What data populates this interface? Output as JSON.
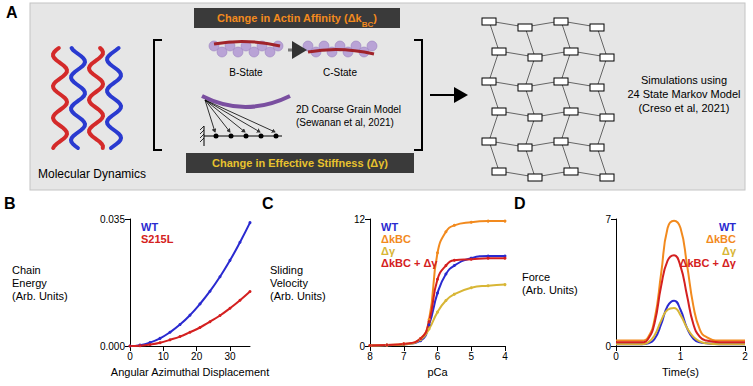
{
  "panel_a": {
    "letter": "A",
    "left_label": "Molecular Dynamics",
    "affinity_box": {
      "text": "Change in Actin Affinity (Δk",
      "sub": "BC",
      "tail": ")"
    },
    "b_state": "B-State",
    "c_state": "C-State",
    "coarse_grain": [
      "2D Coarse Grain Model",
      "(Sewanan et al, 2021)"
    ],
    "stiffness_box": "Change in Effective Stiffness (Δγ)",
    "simulation": [
      "Simulations using",
      "24 State Markov Model",
      "(Creso et al, 2021)"
    ]
  },
  "chart_data": [
    {
      "panel": "B",
      "type": "line",
      "marker": "circle",
      "grid": false,
      "legend": "top-left",
      "x_label": "Angular Azimuthal Displacement",
      "y_label": "Chain Energy (Arb. Units)",
      "x": [
        0,
        3,
        6,
        9,
        12,
        15,
        18,
        21,
        24,
        27,
        30,
        33,
        36
      ],
      "xlim": [
        0,
        36
      ],
      "xticks": [
        0,
        10,
        20,
        30
      ],
      "ylim": [
        0,
        0.035
      ],
      "yticks": [
        {
          "value": 0,
          "label": "0.000"
        },
        {
          "value": 0.035,
          "label": "0.035"
        }
      ],
      "series": [
        {
          "name": "WT",
          "color": "#2a2ad0",
          "values": [
            0,
            0.00024,
            0.00094,
            0.0021,
            0.0038,
            0.0059,
            0.0085,
            0.0116,
            0.0151,
            0.0191,
            0.0236,
            0.0286,
            0.034
          ]
        },
        {
          "name": "S215L",
          "color": "#d42020",
          "values": [
            0,
            0.0001,
            0.0004,
            0.0009,
            0.0017,
            0.0026,
            0.0038,
            0.0051,
            0.0067,
            0.0084,
            0.0104,
            0.0126,
            0.015
          ]
        }
      ]
    },
    {
      "panel": "C",
      "type": "line",
      "marker": "circle",
      "grid": false,
      "legend": "top-left",
      "x_label": "pCa",
      "y_label": "Sliding Velocity (Arb. Units)",
      "x": [
        8,
        7.5,
        7,
        6.5,
        6.25,
        6,
        5.75,
        5.5,
        5,
        4.5,
        4
      ],
      "xlim": [
        8,
        4
      ],
      "xticks": [
        8,
        7,
        6,
        5,
        4
      ],
      "ylim": [
        0,
        12
      ],
      "yticks": [
        0,
        12
      ],
      "series": [
        {
          "name": "WT",
          "color": "#2a2ad0",
          "values": [
            0.05,
            0.08,
            0.15,
            0.5,
            2.0,
            5.0,
            6.8,
            7.6,
            8.3,
            8.5,
            8.5
          ]
        },
        {
          "name": "ΔkBC",
          "color": "#f28a1e",
          "values": [
            0.05,
            0.1,
            0.2,
            0.7,
            2.5,
            8.8,
            10.8,
            11.4,
            11.7,
            11.8,
            11.8
          ]
        },
        {
          "name": "Δγ",
          "color": "#d8b636",
          "values": [
            0.05,
            0.08,
            0.15,
            0.6,
            1.6,
            3.2,
            4.3,
            4.9,
            5.5,
            5.7,
            5.8
          ]
        },
        {
          "name": "ΔkBC + Δγ",
          "color": "#d42020",
          "values": [
            0.05,
            0.1,
            0.2,
            0.7,
            2.3,
            6.3,
            7.6,
            8.1,
            8.2,
            8.3,
            8.3
          ]
        }
      ]
    },
    {
      "panel": "D",
      "type": "line",
      "marker": "none",
      "grid": false,
      "legend": "top-right",
      "x_label": "Time(s)",
      "y_label": "Force (Arb. Units)",
      "x": [
        0,
        0.2,
        0.4,
        0.5,
        0.6,
        0.7,
        0.8,
        0.9,
        1.0,
        1.1,
        1.2,
        1.3,
        1.4,
        1.6,
        1.8,
        2.0
      ],
      "xlim": [
        0,
        2
      ],
      "xticks": [
        0,
        1,
        2
      ],
      "ylim": [
        0,
        7
      ],
      "yticks": [
        0,
        7
      ],
      "series": [
        {
          "name": "WT",
          "color": "#2a2ad0",
          "values": [
            0.1,
            0.1,
            0.1,
            0.15,
            0.4,
            1.2,
            2.2,
            2.5,
            2.0,
            1.0,
            0.4,
            0.2,
            0.15,
            0.1,
            0.1,
            0.1
          ]
        },
        {
          "name": "ΔkBC",
          "color": "#f28a1e",
          "values": [
            0.3,
            0.3,
            0.3,
            0.5,
            1.5,
            4.0,
            6.5,
            6.9,
            6.5,
            4.5,
            2.2,
            0.9,
            0.5,
            0.3,
            0.3,
            0.3
          ]
        },
        {
          "name": "Δγ",
          "color": "#d8b636",
          "values": [
            0.1,
            0.1,
            0.1,
            0.2,
            0.6,
            1.4,
            2.0,
            2.1,
            1.7,
            1.0,
            0.5,
            0.25,
            0.15,
            0.1,
            0.1,
            0.1
          ]
        },
        {
          "name": "ΔkBC + Δγ",
          "color": "#d42020",
          "values": [
            0.2,
            0.2,
            0.2,
            0.4,
            1.3,
            3.3,
            4.7,
            5.0,
            4.4,
            2.8,
            1.2,
            0.5,
            0.3,
            0.2,
            0.2,
            0.2
          ]
        }
      ]
    }
  ]
}
